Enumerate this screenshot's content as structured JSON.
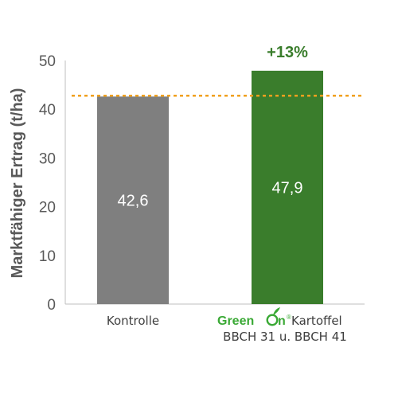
{
  "chart_data": {
    "type": "bar",
    "title": "",
    "xlabel": "",
    "ylabel": "Marktfähiger Ertrag (t/ha)",
    "ylim": [
      0,
      50
    ],
    "yticks": [
      0,
      10,
      20,
      30,
      40,
      50
    ],
    "grid": false,
    "categories": [
      "Kontrolle",
      "GreenOn® Kartoffel BBCH 31 u. BBCH 41"
    ],
    "category_lines": [
      {
        "line1": "Kontrolle",
        "line2": ""
      },
      {
        "brand_part1": "Green ",
        "brand_part2": "n",
        "brand_reg": "®",
        "line1_rest": "Kartoffel",
        "line2": "BBCH 31 u. BBCH 41"
      }
    ],
    "values": [
      42.6,
      47.9
    ],
    "data_labels": [
      "42,6",
      "47,9"
    ],
    "bar_colors": [
      "#7f7f7f",
      "#3a7d2c"
    ],
    "reference_line": {
      "value": 42.6,
      "style": "dotted",
      "color": "#f0a01e"
    },
    "annotations": [
      {
        "text": "+13%",
        "category": "GreenOn® Kartoffel BBCH 31 u. BBCH 41",
        "color": "#3a7d2c"
      }
    ]
  },
  "colors": {
    "axis": "#bfbfbf",
    "tick_text": "#595959",
    "brand_green": "#3aa935"
  },
  "icons": [
    "greenon-logo-icon"
  ]
}
